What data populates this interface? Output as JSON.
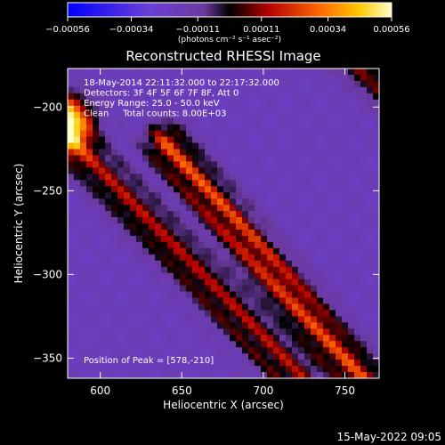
{
  "chart_data": {
    "type": "heatmap",
    "title": "Reconstructed RHESSI Image",
    "xlabel": "Heliocentric X (arcsec)",
    "ylabel": "Heliocentric Y (arcsec)",
    "xlim": [
      580,
      771
    ],
    "ylim": [
      -362,
      -177
    ],
    "x_ticks": [
      600,
      650,
      700,
      750
    ],
    "y_ticks": [
      -350,
      -300,
      -250,
      -200
    ],
    "colorbar": {
      "range": [
        -0.00056,
        0.00056
      ],
      "ticks": [
        "-0.00056",
        "-0.00034",
        "-0.00011",
        "0.00011",
        "0.00034",
        "0.00056"
      ],
      "unit_label": "(photons cm⁻² s⁻¹ asec⁻²)"
    },
    "annotations": [
      "18-May-2014 22:11:32.000 to 22:17:32.000",
      "Detectors: 3F 4F 5F 6F 7F 8F, Att 0",
      "Energy Range: 25.0 - 50.0 keV",
      "Clean     Total counts: 8.00E+03"
    ],
    "peak_label": "Position of Peak = [578,-210]",
    "peak": {
      "x": 578,
      "y": -210
    },
    "bands": [
      {
        "name": "upper-left ridge",
        "line": [
          [
            560,
            -198
          ],
          [
            720,
            -362
          ]
        ],
        "amplitude": 0.00036
      },
      {
        "name": "central ridge",
        "line": [
          [
            640,
            -222
          ],
          [
            760,
            -362
          ]
        ],
        "amplitude": 0.00048
      },
      {
        "name": "lower-right ridge",
        "line": [
          [
            745,
            -160
          ],
          [
            800,
            -210
          ]
        ],
        "amplitude": 0.00033
      }
    ]
  },
  "footer": {
    "timestamp": "15-May-2022 09:05"
  }
}
